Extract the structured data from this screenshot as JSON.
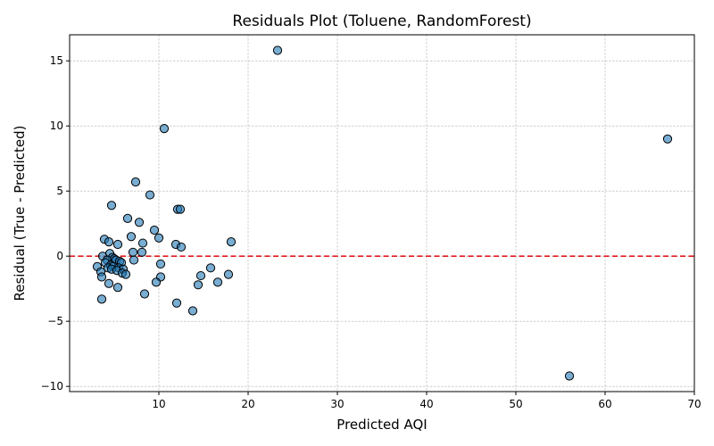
{
  "chart_data": {
    "type": "scatter",
    "title": "Residuals Plot (Toluene, RandomForest)",
    "xlabel": "Predicted AQI",
    "ylabel": "Residual (True - Predicted)",
    "xlim": [
      0,
      70
    ],
    "ylim": [
      -10.4,
      17
    ],
    "xticks": [
      10,
      20,
      30,
      40,
      50,
      60,
      70
    ],
    "yticks": [
      -10,
      -5,
      0,
      5,
      10,
      15
    ],
    "grid": true,
    "reference_line": {
      "y": 0,
      "style": "dashed",
      "color": "#e31a1c"
    },
    "marker_color": "#1f77b4",
    "points": [
      {
        "x": 23.3,
        "y": 15.8
      },
      {
        "x": 67.0,
        "y": 9.0
      },
      {
        "x": 56.0,
        "y": -9.2
      },
      {
        "x": 10.6,
        "y": 9.8
      },
      {
        "x": 7.4,
        "y": 5.7
      },
      {
        "x": 9.0,
        "y": 4.7
      },
      {
        "x": 4.7,
        "y": 3.9
      },
      {
        "x": 12.1,
        "y": 3.6
      },
      {
        "x": 12.4,
        "y": 3.6
      },
      {
        "x": 6.5,
        "y": 2.9
      },
      {
        "x": 7.8,
        "y": 2.6
      },
      {
        "x": 9.5,
        "y": 2.0
      },
      {
        "x": 6.9,
        "y": 1.5
      },
      {
        "x": 10.0,
        "y": 1.4
      },
      {
        "x": 3.9,
        "y": 1.3
      },
      {
        "x": 4.4,
        "y": 1.1
      },
      {
        "x": 8.2,
        "y": 1.0
      },
      {
        "x": 18.1,
        "y": 1.1
      },
      {
        "x": 5.4,
        "y": 0.9
      },
      {
        "x": 11.9,
        "y": 0.9
      },
      {
        "x": 12.5,
        "y": 0.7
      },
      {
        "x": 7.1,
        "y": 0.3
      },
      {
        "x": 8.1,
        "y": 0.3
      },
      {
        "x": 4.5,
        "y": 0.2
      },
      {
        "x": 3.7,
        "y": 0.0
      },
      {
        "x": 4.8,
        "y": -0.1
      },
      {
        "x": 5.0,
        "y": -0.2
      },
      {
        "x": 5.2,
        "y": -0.3
      },
      {
        "x": 4.2,
        "y": -0.3
      },
      {
        "x": 5.6,
        "y": -0.4
      },
      {
        "x": 7.2,
        "y": -0.3
      },
      {
        "x": 5.8,
        "y": -0.5
      },
      {
        "x": 4.0,
        "y": -0.5
      },
      {
        "x": 10.2,
        "y": -0.6
      },
      {
        "x": 4.6,
        "y": -0.7
      },
      {
        "x": 3.1,
        "y": -0.8
      },
      {
        "x": 4.9,
        "y": -0.8
      },
      {
        "x": 4.3,
        "y": -0.9
      },
      {
        "x": 5.5,
        "y": -0.9
      },
      {
        "x": 15.8,
        "y": -0.9
      },
      {
        "x": 6.0,
        "y": -1.0
      },
      {
        "x": 4.7,
        "y": -1.0
      },
      {
        "x": 5.3,
        "y": -1.1
      },
      {
        "x": 3.5,
        "y": -1.2
      },
      {
        "x": 5.9,
        "y": -1.3
      },
      {
        "x": 6.3,
        "y": -1.4
      },
      {
        "x": 17.8,
        "y": -1.4
      },
      {
        "x": 14.7,
        "y": -1.5
      },
      {
        "x": 3.6,
        "y": -1.6
      },
      {
        "x": 10.2,
        "y": -1.6
      },
      {
        "x": 9.7,
        "y": -2.0
      },
      {
        "x": 16.6,
        "y": -2.0
      },
      {
        "x": 4.4,
        "y": -2.1
      },
      {
        "x": 14.4,
        "y": -2.2
      },
      {
        "x": 5.4,
        "y": -2.4
      },
      {
        "x": 8.4,
        "y": -2.9
      },
      {
        "x": 3.6,
        "y": -3.3
      },
      {
        "x": 12.0,
        "y": -3.6
      },
      {
        "x": 13.8,
        "y": -4.2
      }
    ]
  }
}
